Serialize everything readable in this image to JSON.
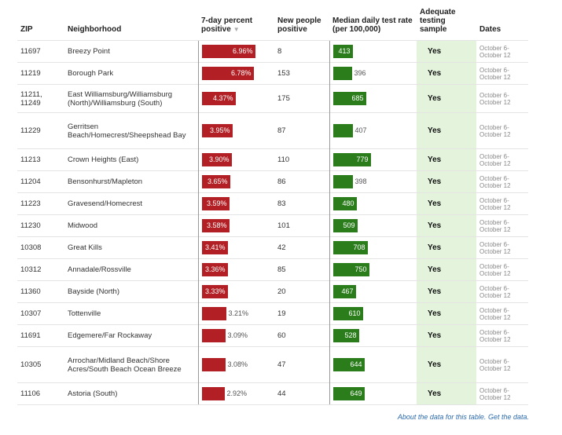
{
  "headers": {
    "zip": "ZIP",
    "neighborhood": "Neighborhood",
    "positive": "7-day percent positive",
    "people": "New people positive",
    "rate": "Median daily test rate (per 100,000)",
    "adequate": "Adequate testing sample",
    "dates": "Dates"
  },
  "rows": [
    {
      "zip": "11697",
      "neighborhood": "Breezy Point",
      "positive": "6.96%",
      "positive_value": 6.96,
      "people": "8",
      "rate": "413",
      "rate_value": 413,
      "adequate": "Yes",
      "date1": "October 6-",
      "date2": "October 12"
    },
    {
      "zip": "11219",
      "neighborhood": "Borough Park",
      "positive": "6.78%",
      "positive_value": 6.78,
      "people": "153",
      "rate": "396",
      "rate_value": 396,
      "adequate": "Yes",
      "date1": "October 6-",
      "date2": "October 12"
    },
    {
      "zip": "11211, 11249",
      "neighborhood": "East Williamsburg/Williamsburg (North)/Williamsburg (South)",
      "positive": "4.37%",
      "positive_value": 4.37,
      "people": "175",
      "rate": "685",
      "rate_value": 685,
      "adequate": "Yes",
      "date1": "October 6-",
      "date2": "October 12"
    },
    {
      "zip": "11229",
      "neighborhood": "Gerritsen Beach/Homecrest/Sheepshead Bay",
      "positive": "3.95%",
      "positive_value": 3.95,
      "people": "87",
      "rate": "407",
      "rate_value": 407,
      "adequate": "Yes",
      "date1": "October 6-",
      "date2": "October 12"
    },
    {
      "zip": "11213",
      "neighborhood": "Crown Heights (East)",
      "positive": "3.90%",
      "positive_value": 3.9,
      "people": "110",
      "rate": "779",
      "rate_value": 779,
      "adequate": "Yes",
      "date1": "October 6-",
      "date2": "October 12"
    },
    {
      "zip": "11204",
      "neighborhood": "Bensonhurst/Mapleton",
      "positive": "3.65%",
      "positive_value": 3.65,
      "people": "86",
      "rate": "398",
      "rate_value": 398,
      "adequate": "Yes",
      "date1": "October 6-",
      "date2": "October 12"
    },
    {
      "zip": "11223",
      "neighborhood": "Gravesend/Homecrest",
      "positive": "3.59%",
      "positive_value": 3.59,
      "people": "83",
      "rate": "480",
      "rate_value": 480,
      "adequate": "Yes",
      "date1": "October 6-",
      "date2": "October 12"
    },
    {
      "zip": "11230",
      "neighborhood": "Midwood",
      "positive": "3.58%",
      "positive_value": 3.58,
      "people": "101",
      "rate": "509",
      "rate_value": 509,
      "adequate": "Yes",
      "date1": "October 6-",
      "date2": "October 12"
    },
    {
      "zip": "10308",
      "neighborhood": "Great Kills",
      "positive": "3.41%",
      "positive_value": 3.41,
      "people": "42",
      "rate": "708",
      "rate_value": 708,
      "adequate": "Yes",
      "date1": "October 6-",
      "date2": "October 12"
    },
    {
      "zip": "10312",
      "neighborhood": "Annadale/Rossville",
      "positive": "3.36%",
      "positive_value": 3.36,
      "people": "85",
      "rate": "750",
      "rate_value": 750,
      "adequate": "Yes",
      "date1": "October 6-",
      "date2": "October 12"
    },
    {
      "zip": "11360",
      "neighborhood": "Bayside (North)",
      "positive": "3.33%",
      "positive_value": 3.33,
      "people": "20",
      "rate": "467",
      "rate_value": 467,
      "adequate": "Yes",
      "date1": "October 6-",
      "date2": "October 12"
    },
    {
      "zip": "10307",
      "neighborhood": "Tottenville",
      "positive": "3.21%",
      "positive_value": 3.21,
      "people": "19",
      "rate": "610",
      "rate_value": 610,
      "adequate": "Yes",
      "date1": "October 6-",
      "date2": "October 12"
    },
    {
      "zip": "11691",
      "neighborhood": "Edgemere/Far Rockaway",
      "positive": "3.09%",
      "positive_value": 3.09,
      "people": "60",
      "rate": "528",
      "rate_value": 528,
      "adequate": "Yes",
      "date1": "October 6-",
      "date2": "October 12"
    },
    {
      "zip": "10305",
      "neighborhood": "Arrochar/Midland Beach/Shore Acres/South Beach Ocean Breeze",
      "positive": "3.08%",
      "positive_value": 3.08,
      "people": "47",
      "rate": "644",
      "rate_value": 644,
      "adequate": "Yes",
      "date1": "October 6-",
      "date2": "October 12"
    },
    {
      "zip": "11106",
      "neighborhood": "Astoria (South)",
      "positive": "2.92%",
      "positive_value": 2.92,
      "people": "44",
      "rate": "649",
      "rate_value": 649,
      "adequate": "Yes",
      "date1": "October 6-",
      "date2": "October 12"
    }
  ],
  "footer": {
    "about_link": "About the data for this table.",
    "get_link": "Get the data."
  },
  "colors": {
    "positive_bar": "#b21f24",
    "rate_bar": "#2b7d1c",
    "adequate_bg": "#e4f4dc",
    "link": "#2a6aad"
  },
  "icons": {
    "sort": "sort-down-arrow-icon"
  }
}
